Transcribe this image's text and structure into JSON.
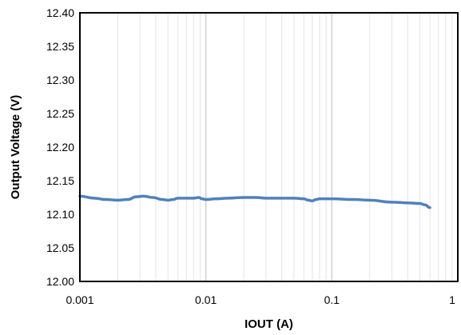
{
  "chart_data": {
    "type": "line",
    "title": "",
    "xlabel": "IOUT (A)",
    "ylabel": "Output Voltage (V)",
    "xscale": "log",
    "xlim": [
      0.001,
      1
    ],
    "ylim": [
      12.0,
      12.4
    ],
    "x_tick_values": [
      0.001,
      0.01,
      0.1,
      1
    ],
    "x_tick_labels": [
      "0.001",
      "0.01",
      "0.1",
      "1"
    ],
    "y_tick_values": [
      12.0,
      12.05,
      12.1,
      12.15,
      12.2,
      12.25,
      12.3,
      12.35,
      12.4
    ],
    "y_tick_labels": [
      "12.00",
      "12.05",
      "12.10",
      "12.15",
      "12.20",
      "12.25",
      "12.30",
      "12.35",
      "12.40"
    ],
    "grid": true,
    "legend": "none",
    "colors": {
      "series": "#4f81bd",
      "grid_major": "#d0d0d0",
      "grid_minor": "#e4e4e4",
      "frame": "#000000"
    },
    "series": [
      {
        "x": [
          0.001,
          0.0013,
          0.0016,
          0.002,
          0.0024,
          0.0028,
          0.0032,
          0.0038,
          0.0045,
          0.005,
          0.0055,
          0.006,
          0.007,
          0.008,
          0.0088,
          0.0093,
          0.01,
          0.012,
          0.015,
          0.02,
          0.025,
          0.03,
          0.04,
          0.05,
          0.06,
          0.065,
          0.07,
          0.075,
          0.08,
          0.1,
          0.15,
          0.2,
          0.3,
          0.4,
          0.5,
          0.55,
          0.6
        ],
        "values": [
          12.127,
          12.124,
          12.122,
          12.121,
          12.122,
          12.126,
          12.127,
          12.125,
          12.122,
          12.121,
          12.122,
          12.124,
          12.124,
          12.124,
          12.125,
          12.123,
          12.122,
          12.123,
          12.124,
          12.125,
          12.125,
          12.124,
          12.124,
          12.124,
          12.123,
          12.121,
          12.12,
          12.122,
          12.123,
          12.123,
          12.122,
          12.121,
          12.118,
          12.117,
          12.116,
          12.114,
          12.11
        ]
      }
    ]
  }
}
